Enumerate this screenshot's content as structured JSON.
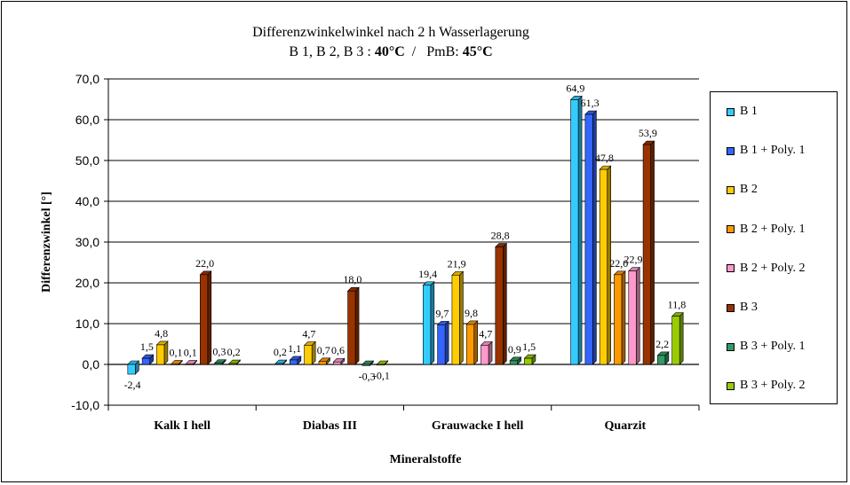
{
  "header": {
    "title_line1": "Differenzwinkelwinkel nach 2 h Wasserlagerung",
    "sub_prefix": "B 1, B 2, B 3 : ",
    "sub_temp1": "40°C",
    "sub_mid": "  /   PmB: ",
    "sub_temp2": "45°C"
  },
  "chart_data": {
    "type": "bar",
    "title": "Differenzwinkelwinkel nach 2 h Wasserlagerung",
    "subtitle": "B 1, B 2, B 3 : 40°C  /   PmB: 45°C",
    "xlabel": "Mineralstoffe",
    "ylabel": "Differenzwinkel  [°]",
    "ylim": [
      -10,
      70
    ],
    "yticks": [
      "-10,0",
      "0,0",
      "10,0",
      "20,0",
      "30,0",
      "40,0",
      "50,0",
      "60,0",
      "70,0"
    ],
    "grid": true,
    "legend_position": "right",
    "categories": [
      "Kalk I  hell",
      "Diabas III",
      "Grauwacke I hell",
      "Quarzit"
    ],
    "series": [
      {
        "name": "B 1",
        "color": "#33CCFF",
        "values": [
          -2.4,
          0.2,
          19.4,
          64.9
        ],
        "labels": [
          "-2,4",
          "0,2",
          "19,4",
          "64,9"
        ]
      },
      {
        "name": "B 1 + Poly. 1",
        "color": "#3366FF",
        "values": [
          1.5,
          1.1,
          9.7,
          61.3
        ],
        "labels": [
          "1,5",
          "1,1",
          "9,7",
          "61,3"
        ]
      },
      {
        "name": "B 2",
        "color": "#FFCC00",
        "values": [
          4.8,
          4.7,
          21.9,
          47.8
        ],
        "labels": [
          "4,8",
          "4,7",
          "21,9",
          "47,8"
        ]
      },
      {
        "name": "B 2 +  Poly. 1",
        "color": "#FF9900",
        "values": [
          0.1,
          0.7,
          9.8,
          22.0
        ],
        "labels": [
          "0,1",
          "0,7",
          "9,8",
          "22,0"
        ]
      },
      {
        "name": "B 2 +  Poly. 2",
        "color": "#FF99CC",
        "values": [
          0.1,
          0.6,
          4.7,
          22.9
        ],
        "labels": [
          "0,1",
          "0,6",
          "4,7",
          "22,9"
        ]
      },
      {
        "name": "B 3",
        "color": "#993300",
        "values": [
          22.0,
          18.0,
          28.8,
          53.9
        ],
        "labels": [
          "22,0",
          "18,0",
          "28,8",
          "53,9"
        ]
      },
      {
        "name": "B 3 +  Poly. 1",
        "color": "#339966",
        "values": [
          0.3,
          -0.3,
          0.9,
          2.2
        ],
        "labels": [
          "0,3",
          "-0,3",
          "0,9",
          "2,2"
        ]
      },
      {
        "name": "B 3 +  Poly. 2",
        "color": "#99CC00",
        "values": [
          0.2,
          -0.1,
          1.5,
          11.8
        ],
        "labels": [
          "0,2",
          "-0,1",
          "1,5",
          "11,8"
        ]
      }
    ]
  }
}
